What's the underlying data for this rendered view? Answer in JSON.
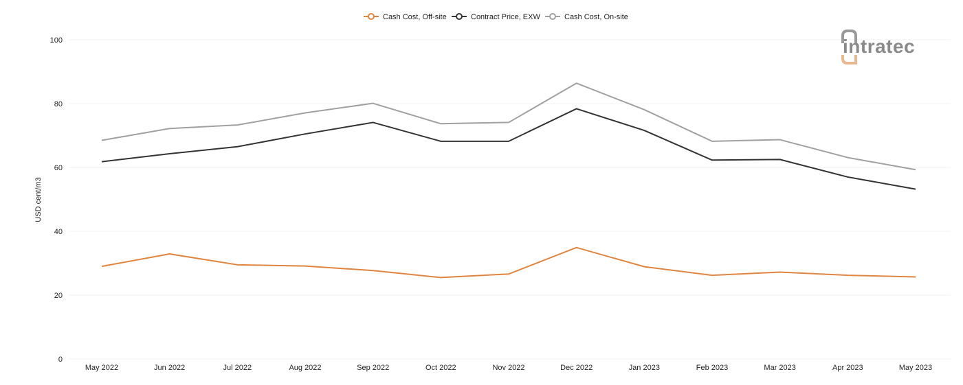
{
  "chart_data": {
    "type": "line",
    "categories": [
      "May 2022",
      "Jun 2022",
      "Jul 2022",
      "Aug 2022",
      "Sep 2022",
      "Oct 2022",
      "Nov 2022",
      "Dec 2022",
      "Jan 2023",
      "Feb 2023",
      "Mar 2023",
      "Apr 2023",
      "May 2023"
    ],
    "series": [
      {
        "name": "Cash Cost, Off-site",
        "color": "#e0853f",
        "values": [
          29.0,
          32.9,
          29.5,
          29.1,
          27.7,
          25.5,
          26.6,
          34.9,
          28.9,
          26.2,
          27.2,
          26.2,
          25.7
        ]
      },
      {
        "name": "Contract Price, EXW",
        "color": "#333333",
        "values": [
          61.8,
          64.3,
          66.5,
          70.5,
          74.1,
          68.2,
          68.2,
          78.4,
          71.6,
          62.3,
          62.5,
          57.0,
          53.2
        ]
      },
      {
        "name": "Cash Cost, On-site",
        "color": "#a0a0a0",
        "values": [
          68.5,
          72.2,
          73.3,
          77.1,
          80.1,
          73.7,
          74.1,
          86.4,
          78.1,
          68.2,
          68.7,
          63.1,
          59.3
        ]
      }
    ],
    "ylabel": "USD cent/m3",
    "xlabel": "",
    "ylim": [
      0,
      100
    ],
    "yticks": [
      0,
      20,
      40,
      60,
      80,
      100
    ],
    "grid": true,
    "legend_position": "top-center"
  },
  "logo": {
    "text": "intratec"
  }
}
